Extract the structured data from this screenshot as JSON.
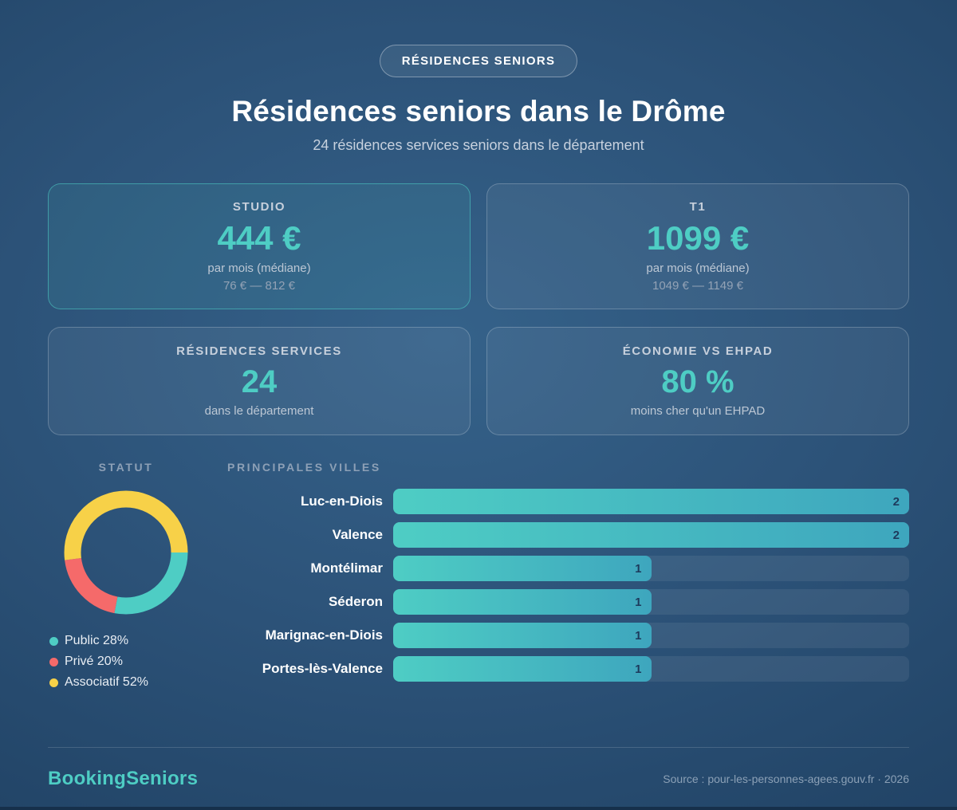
{
  "header": {
    "badge": "RÉSIDENCES SENIORS",
    "title": "Résidences seniors dans le Drôme",
    "subtitle": "24 résidences services seniors dans le département"
  },
  "stat_cards": [
    {
      "label": "STUDIO",
      "value": "444 €",
      "sub": "par mois (médiane)",
      "range": "76 € — 812 €",
      "highlight": true
    },
    {
      "label": "T1",
      "value": "1099 €",
      "sub": "par mois (médiane)",
      "range": "1049 € — 1149 €",
      "highlight": false
    },
    {
      "label": "RÉSIDENCES SERVICES",
      "value": "24",
      "sub": "dans le département",
      "highlight": false
    },
    {
      "label": "ÉCONOMIE VS EHPAD",
      "value": "80 %",
      "sub": "moins cher qu'un EHPAD",
      "highlight": false
    }
  ],
  "chart_data": [
    {
      "type": "pie",
      "title": "STATUT",
      "labels": [
        "Public",
        "Privé",
        "Associatif"
      ],
      "values": [
        28,
        20,
        52
      ],
      "colors": [
        "#4ECDC4",
        "#F56A6A",
        "#F7D148"
      ],
      "legend": [
        "Public 28%",
        "Privé 20%",
        "Associatif 52%"
      ],
      "donut": true,
      "start_angle_deg": 90,
      "legend_position": "bottom"
    },
    {
      "type": "bar",
      "title": "PRINCIPALES VILLES",
      "orientation": "horizontal",
      "categories": [
        "Luc-en-Diois",
        "Valence",
        "Montélimar",
        "Séderon",
        "Marignac-en-Diois",
        "Portes-lès-Valence"
      ],
      "values": [
        2,
        2,
        1,
        1,
        1,
        1
      ],
      "xlim": [
        0,
        2
      ],
      "grid": false,
      "value_labels": "inside-end"
    }
  ],
  "footer": {
    "brand": "BookingSeniors",
    "source": "Source : pour-les-personnes-agees.gouv.fr · 2026"
  },
  "colors": {
    "accent": "#4ECDC4",
    "bar_gradient_start": "#4ECDC4",
    "bar_gradient_end": "#3EA6BE",
    "bar_value_text": "#1d3a5c",
    "background_center": "#35628a",
    "background_edge": "#1e3a5e",
    "pie_public": "#4ECDC4",
    "pie_prive": "#F56A6A",
    "pie_associatif": "#F7D148"
  }
}
